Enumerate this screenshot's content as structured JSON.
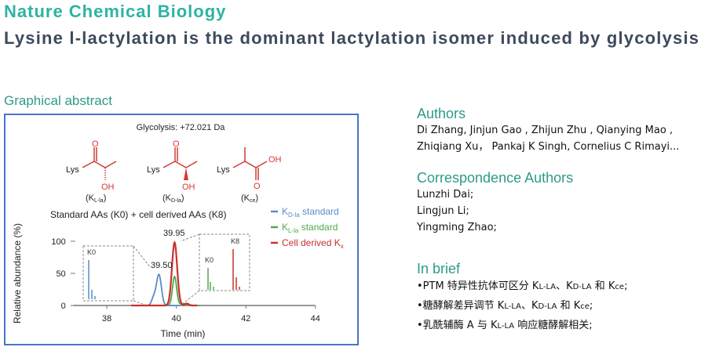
{
  "header": {
    "journal": "Nature Chemical Biology",
    "title": "Lysine l-lactylation is the dominant lactylation isomer induced by glycolysis"
  },
  "graphical_abstract": {
    "label": "Graphical abstract",
    "top_caption": "Glycolysis: +72.021 Da",
    "structures": [
      {
        "lys": "Lys",
        "o": "O",
        "oh": "OH",
        "name": "K",
        "sub": "L-la"
      },
      {
        "lys": "Lys",
        "o": "O",
        "oh": "OH",
        "name": "K",
        "sub": "D-la"
      },
      {
        "lys": "Lys",
        "o": "O",
        "oh": "OH",
        "name": "K",
        "sub": "ce"
      }
    ],
    "subtitle": "Standard AAs (K0) + cell derived AAs (K8)",
    "chart_data": {
      "type": "line",
      "xlabel": "Time (min)",
      "ylabel": "Relative abundance (%)",
      "xlim": [
        37,
        44
      ],
      "ylim": [
        0,
        100
      ],
      "xticks": [
        38,
        40,
        42,
        44
      ],
      "yticks": [
        0,
        50,
        100
      ],
      "legend_position": "top-right",
      "series": [
        {
          "name": "K",
          "sub": "D-la",
          "suffix": " standard",
          "color": "#5b8cc8",
          "peak_x": 39.5,
          "peak_y": 48
        },
        {
          "name": "K",
          "sub": "L-la",
          "suffix": " standard",
          "color": "#4fa84f",
          "peak_x": 39.95,
          "peak_y": 45
        },
        {
          "name": "Cell derived K",
          "sub": "x",
          "suffix": "",
          "color": "#c8302e",
          "peak_x": 39.95,
          "peak_y": 98
        }
      ],
      "annotations": [
        "39.95",
        "39.50"
      ],
      "insets": [
        {
          "labels": [
            "K0"
          ]
        },
        {
          "labels": [
            "K0",
            "K8"
          ]
        }
      ]
    }
  },
  "authors": {
    "heading": "Authors",
    "lines": [
      "Di Zhang, Jinjun Gao , Zhijun Zhu , Qianying Mao ,",
      "Zhiqiang Xu， Pankaj K Singh, Cornelius C Rimayi..."
    ]
  },
  "correspondence": {
    "heading": "Correspondence Authors",
    "names": [
      "Lunzhi Dai;",
      "Lingjun Li;",
      "Yingming Zhao;"
    ]
  },
  "brief": {
    "heading": "In brief",
    "items": [
      {
        "a": "•PTM 特异性抗体可区分 K",
        "s1": "L-LA",
        "b": "、K",
        "s2": "D-LA",
        "c": " 和 K",
        "s3": "ce",
        "d": ";"
      },
      {
        "a": "•糖酵解差异调节 K",
        "s1": "L-LA",
        "b": "、K",
        "s2": "D-LA",
        "c": " 和 K",
        "s3": "ce",
        "d": ";"
      },
      {
        "a": "•乳酰辅酶 A 与 K",
        "s1": "L-LA",
        "b": " 响应糖酵解相关;"
      }
    ]
  }
}
